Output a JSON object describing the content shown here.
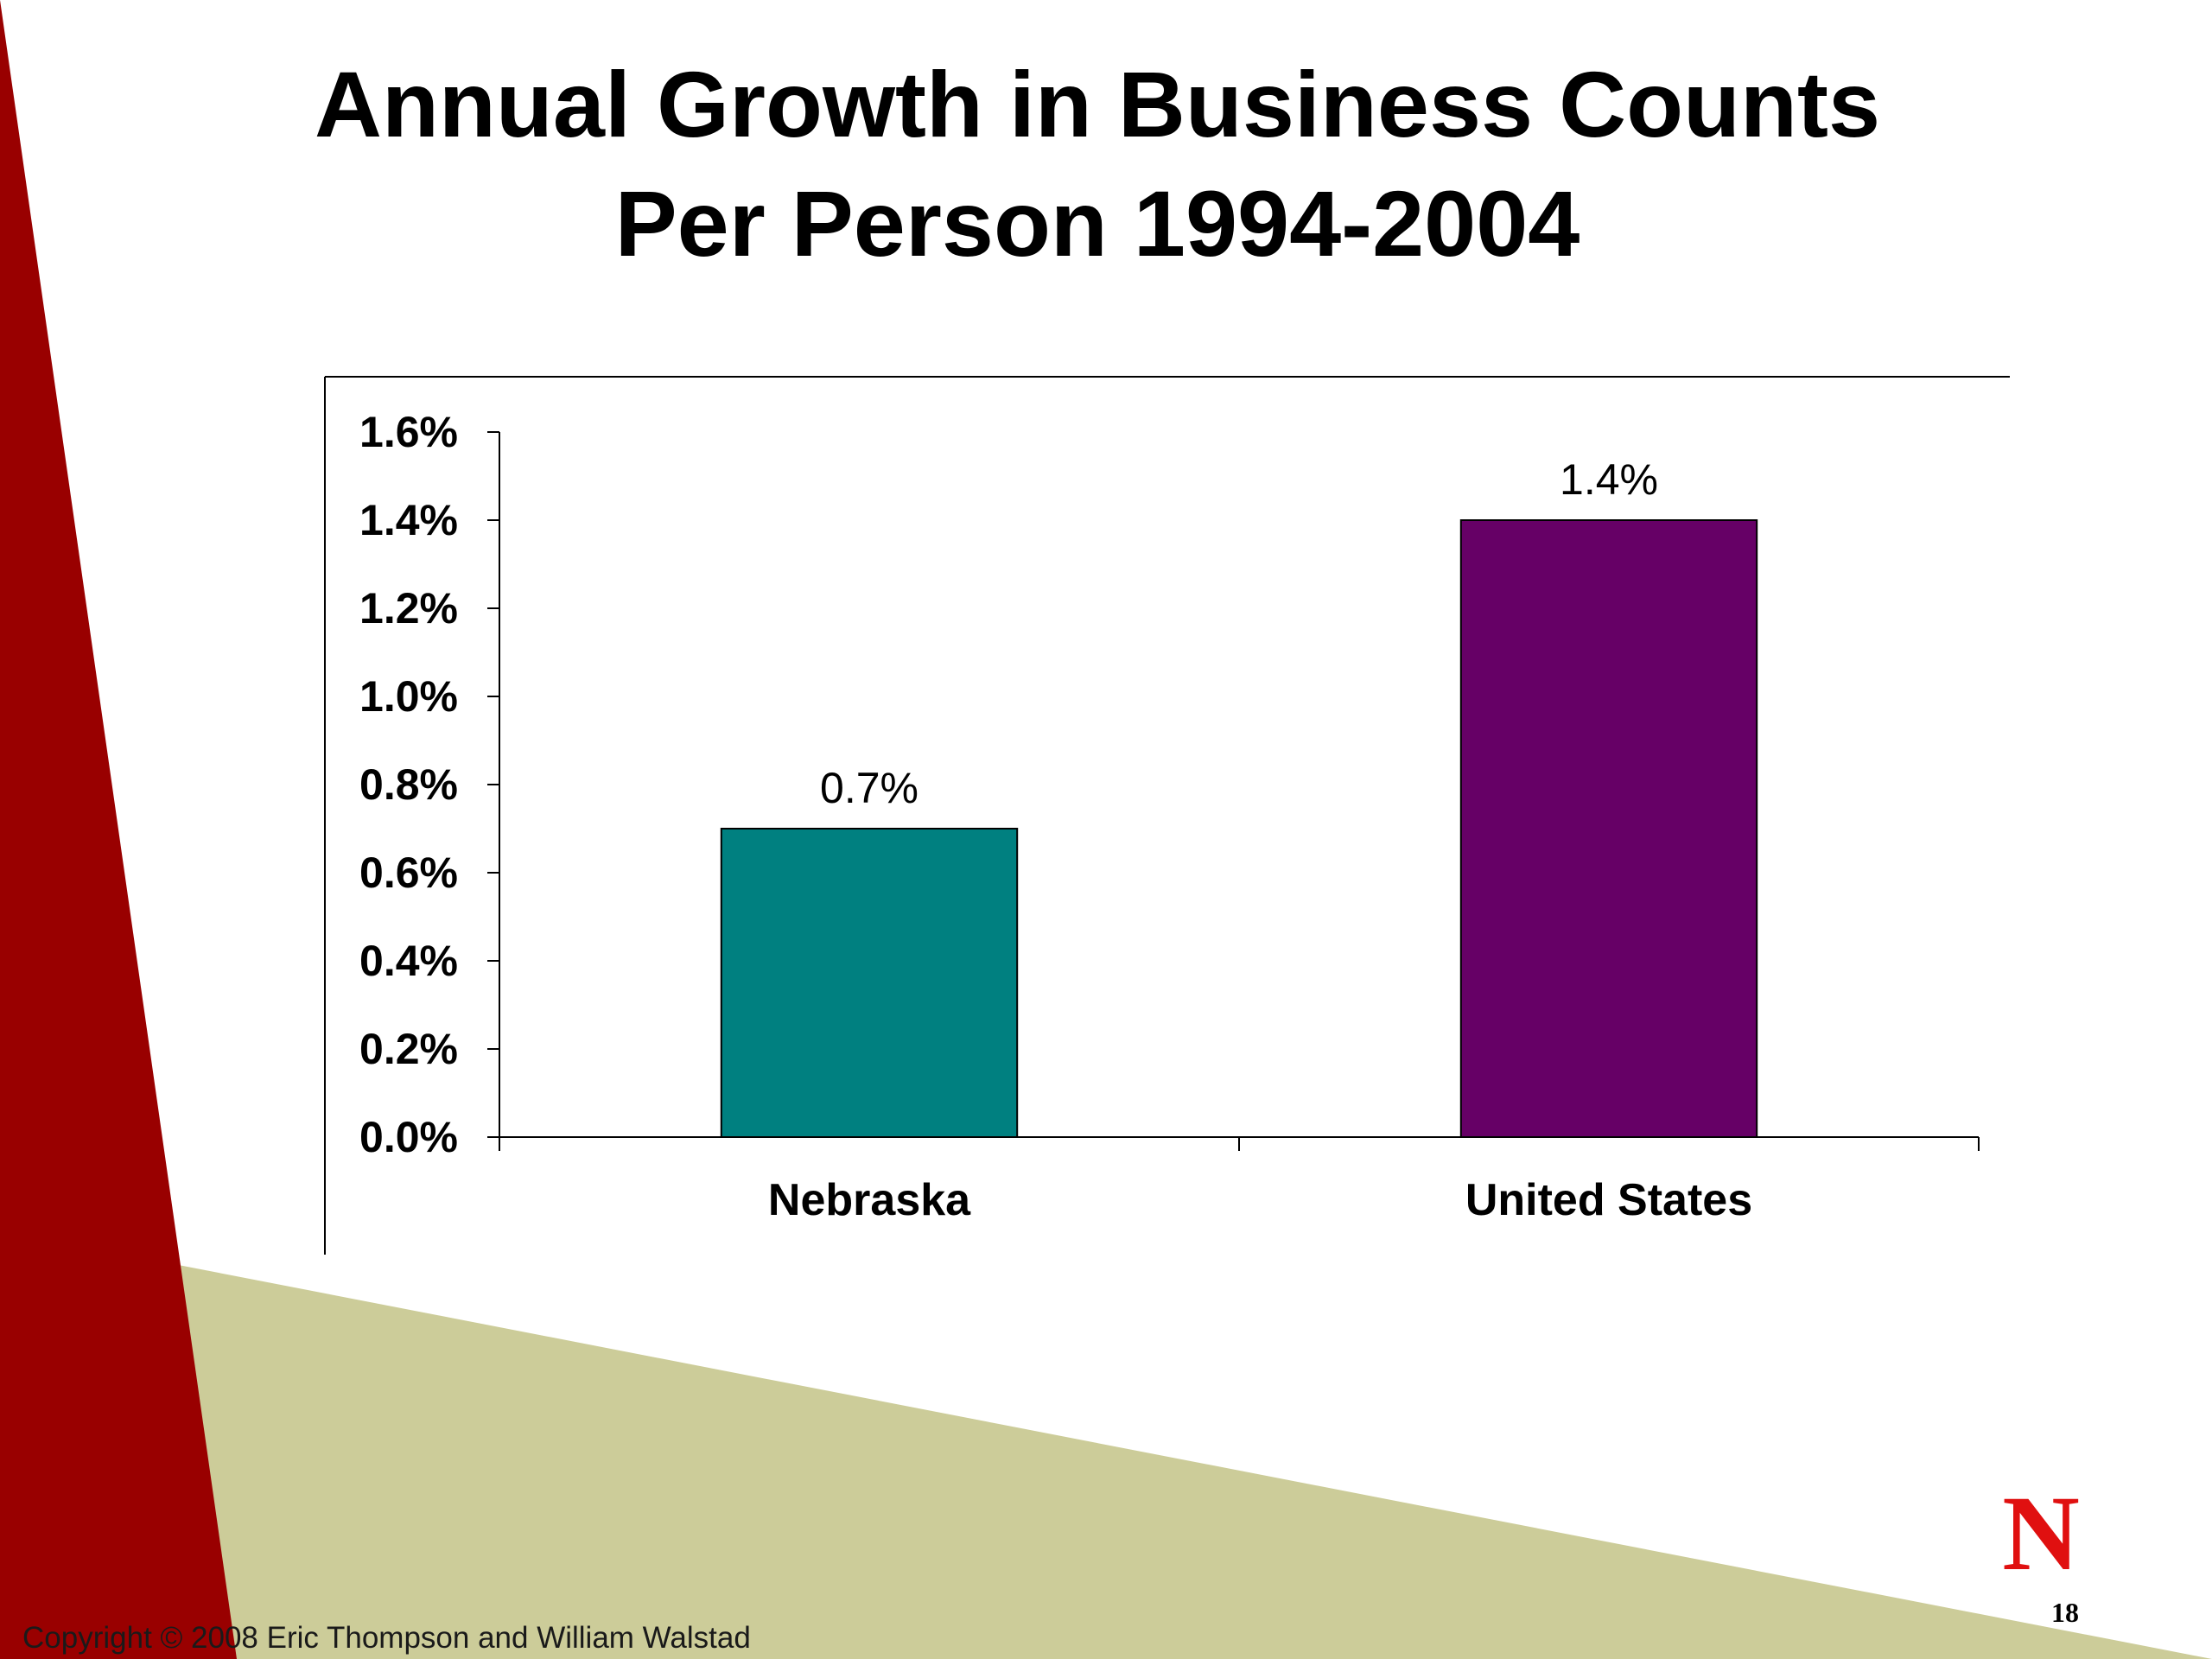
{
  "slide": {
    "title_line1": "Annual Growth in Business Counts",
    "title_line2": "Per Person 1994-2004",
    "copyright": "Copyright © 2008 Eric Thompson and William Walstad",
    "slide_number": "18",
    "logo_letter": "N",
    "colors": {
      "red_band": "#990000",
      "tan_band": "#CCCC99",
      "logo_red": "#E01010"
    }
  },
  "chart_data": {
    "type": "bar",
    "categories": [
      "Nebraska",
      "United States"
    ],
    "values": [
      0.7,
      1.4
    ],
    "data_labels": [
      "0.7%",
      "1.4%"
    ],
    "bar_colors": [
      "#008080",
      "#660066"
    ],
    "yticks": [
      "0.0%",
      "0.2%",
      "0.4%",
      "0.6%",
      "0.8%",
      "1.0%",
      "1.2%",
      "1.4%",
      "1.6%"
    ],
    "ylim": [
      0,
      1.6
    ],
    "ytick_step": 0.2,
    "grid": false,
    "legend": "none",
    "xlabel": "",
    "ylabel": ""
  }
}
